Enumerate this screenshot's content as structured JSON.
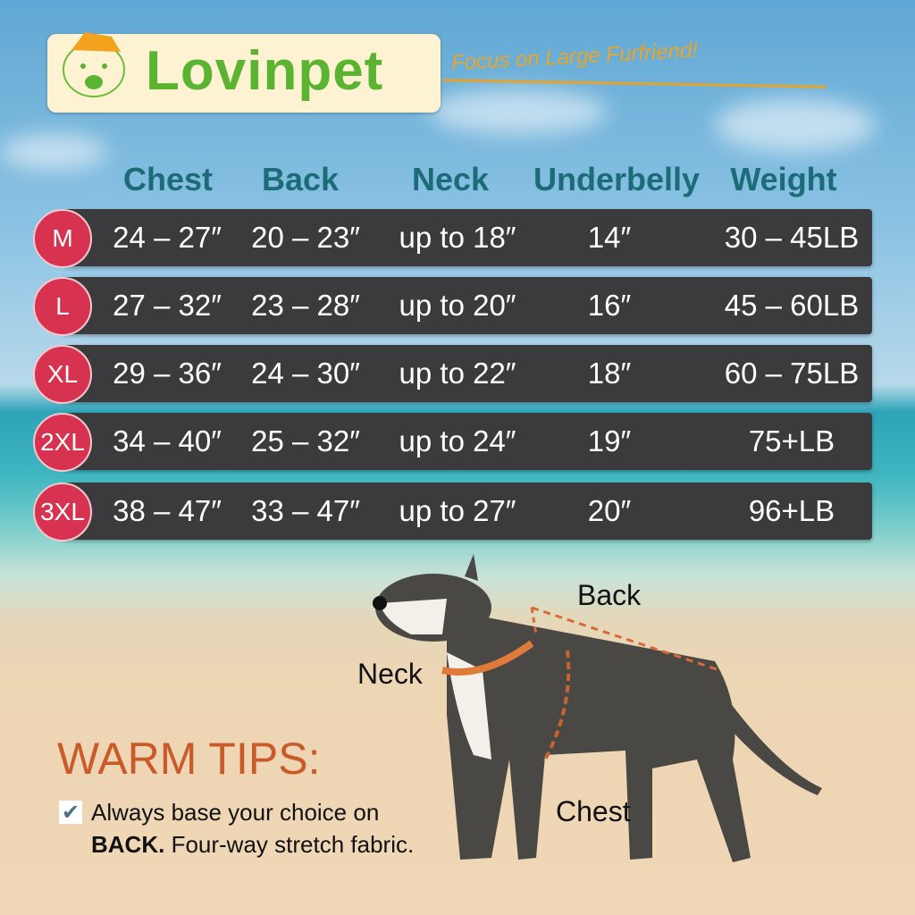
{
  "logo": {
    "brand": "Lovinpet",
    "tagline": "Focus on Large Furfriend!"
  },
  "headers": [
    "Chest",
    "Back",
    "Neck",
    "Underbelly",
    "Weight"
  ],
  "rows": [
    {
      "size": "M",
      "chest": "24 – 27″",
      "back": "20 – 23″",
      "neck": "up to 18″",
      "underbelly": "14″",
      "weight": "30 – 45LB"
    },
    {
      "size": "L",
      "chest": "27 – 32″",
      "back": "23 – 28″",
      "neck": "up to 20″",
      "underbelly": "16″",
      "weight": "45 – 60LB"
    },
    {
      "size": "XL",
      "chest": "29 – 36″",
      "back": "24 – 30″",
      "neck": "up to 22″",
      "underbelly": "18″",
      "weight": "60 – 75LB"
    },
    {
      "size": "2XL",
      "chest": "34 – 40″",
      "back": "25 – 32″",
      "neck": "up to 24″",
      "underbelly": "19″",
      "weight": "75+LB"
    },
    {
      "size": "3XL",
      "chest": "38 – 47″",
      "back": "33 – 47″",
      "neck": "up to 27″",
      "underbelly": "20″",
      "weight": "96+LB"
    }
  ],
  "diagram": {
    "back": "Back",
    "neck": "Neck",
    "chest": "Chest"
  },
  "tips": {
    "title": "WARM TIPS:",
    "line1": "Always base your choice on",
    "line2_bold": "BACK.",
    "line2": " Four-way stretch fabric.",
    "check_icon": "check-mark-icon"
  },
  "colors": {
    "size_badge": "#d73350",
    "header_text": "#1b6c77",
    "row_bg": "#3b3b3d",
    "brand": "#5ab432",
    "accent": "#e9a52a",
    "tips_title": "#c95a2a"
  }
}
